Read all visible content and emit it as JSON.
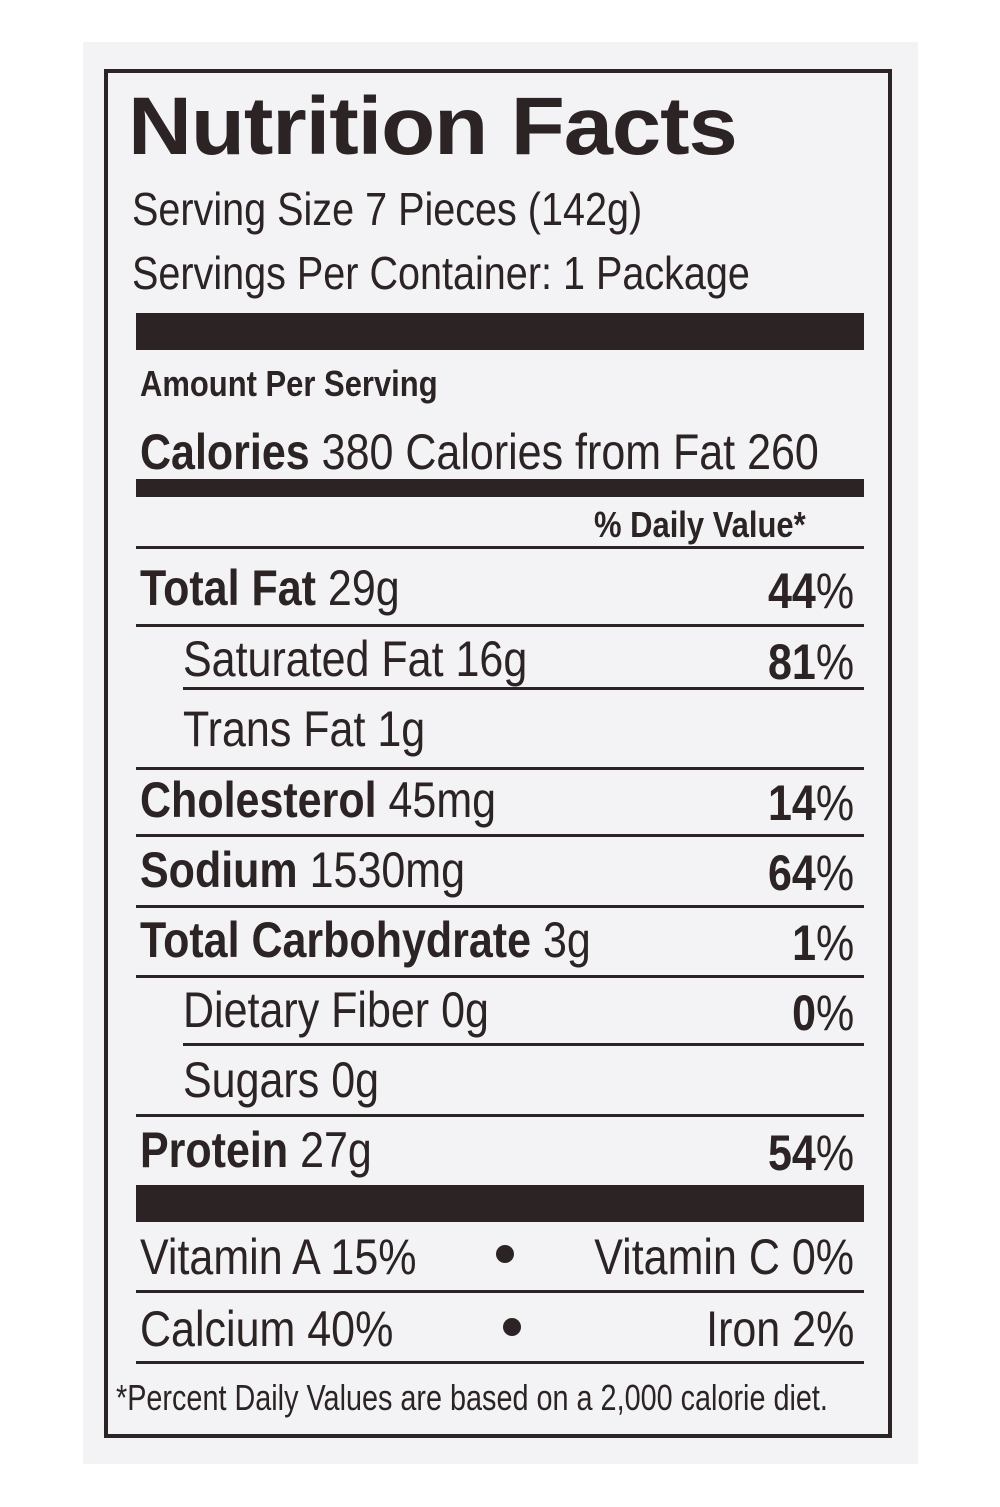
{
  "title": "Nutrition Facts",
  "serving_size": "Serving Size 7 Pieces (142g)",
  "servings_per_container": "Servings Per Container: 1 Package",
  "amount_per_serving": "Amount Per Serving",
  "calories": {
    "label": "Calories",
    "value": "380",
    "from_fat": "Calories from Fat 260"
  },
  "daily_value_header": "% Daily Value*",
  "nutrients": [
    {
      "name": "Total Fat",
      "amount": "29g",
      "pct": "44",
      "sign": "%"
    },
    {
      "name": "Saturated Fat",
      "amount": "16g",
      "pct": "81",
      "sign": "%"
    },
    {
      "name": "Trans Fat",
      "amount": "1g"
    },
    {
      "name": "Cholesterol",
      "amount": "45mg",
      "pct": "14",
      "sign": "%"
    },
    {
      "name": "Sodium",
      "amount": "1530mg",
      "pct": "64",
      "sign": "%"
    },
    {
      "name": "Total Carbohydrate",
      "amount": "3g",
      "pct": "1",
      "sign": "%"
    },
    {
      "name": "Dietary Fiber",
      "amount": "0g",
      "pct": "0",
      "sign": "%"
    },
    {
      "name": "Sugars",
      "amount": "0g"
    },
    {
      "name": "Protein",
      "amount": "27g",
      "pct": "54",
      "sign": "%"
    }
  ],
  "vitamins": {
    "vitamin_a": "Vitamin A 15%",
    "vitamin_c": "Vitamin C 0%",
    "calcium": "Calcium 40%",
    "iron": "Iron 2%"
  },
  "footnote": "*Percent Daily Values are based on a 2,000 calorie diet.",
  "colors": {
    "ink": "#2b2324",
    "panel": "#f3f3f5"
  }
}
